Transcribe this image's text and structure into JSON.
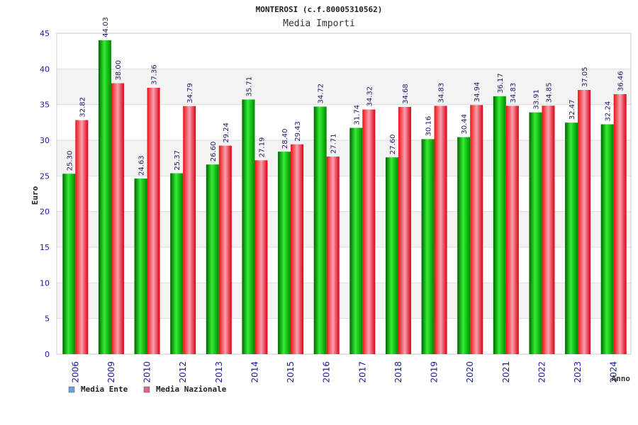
{
  "chart_data": {
    "type": "bar",
    "title": "MONTEROSI (c.f.80005310562)",
    "subtitle": "Media Importi",
    "xlabel": "Anno",
    "ylabel": "Euro",
    "ylim": [
      0,
      45
    ],
    "yticks": [
      0,
      5,
      10,
      15,
      20,
      25,
      30,
      35,
      40,
      45
    ],
    "grid": "horizontal",
    "legend_position": "bottom-left",
    "categories": [
      "2006",
      "2009",
      "2010",
      "2012",
      "2013",
      "2014",
      "2015",
      "2016",
      "2017",
      "2018",
      "2019",
      "2020",
      "2021",
      "2022",
      "2023",
      "2024"
    ],
    "series": [
      {
        "name": "Media Ente",
        "color": "#00aa00",
        "legend_color": "#66a3e0",
        "values": [
          25.3,
          44.03,
          24.63,
          25.37,
          26.6,
          35.71,
          28.4,
          34.72,
          31.74,
          27.6,
          30.16,
          30.44,
          36.17,
          33.91,
          32.47,
          32.24
        ],
        "labels": [
          "25.30",
          "44.03",
          "24.63",
          "25.37",
          "26.60",
          "35.71",
          "28.40",
          "34.72",
          "31.74",
          "27.60",
          "30.16",
          "30.44",
          "36.17",
          "33.91",
          "32.47",
          "32.24"
        ]
      },
      {
        "name": "Media Nazionale",
        "color": "#dd1122",
        "legend_color": "#d26a9a",
        "values": [
          32.82,
          38.0,
          37.36,
          34.79,
          29.24,
          27.19,
          29.43,
          27.71,
          34.32,
          34.68,
          34.83,
          34.94,
          34.83,
          34.85,
          37.05,
          36.46
        ],
        "labels": [
          "32.82",
          "38.00",
          "37.36",
          "34.79",
          "29.24",
          "27.19",
          "29.43",
          "27.71",
          "34.32",
          "34.68",
          "34.83",
          "34.94",
          "34.83",
          "34.85",
          "37.05",
          "36.46"
        ]
      }
    ]
  }
}
